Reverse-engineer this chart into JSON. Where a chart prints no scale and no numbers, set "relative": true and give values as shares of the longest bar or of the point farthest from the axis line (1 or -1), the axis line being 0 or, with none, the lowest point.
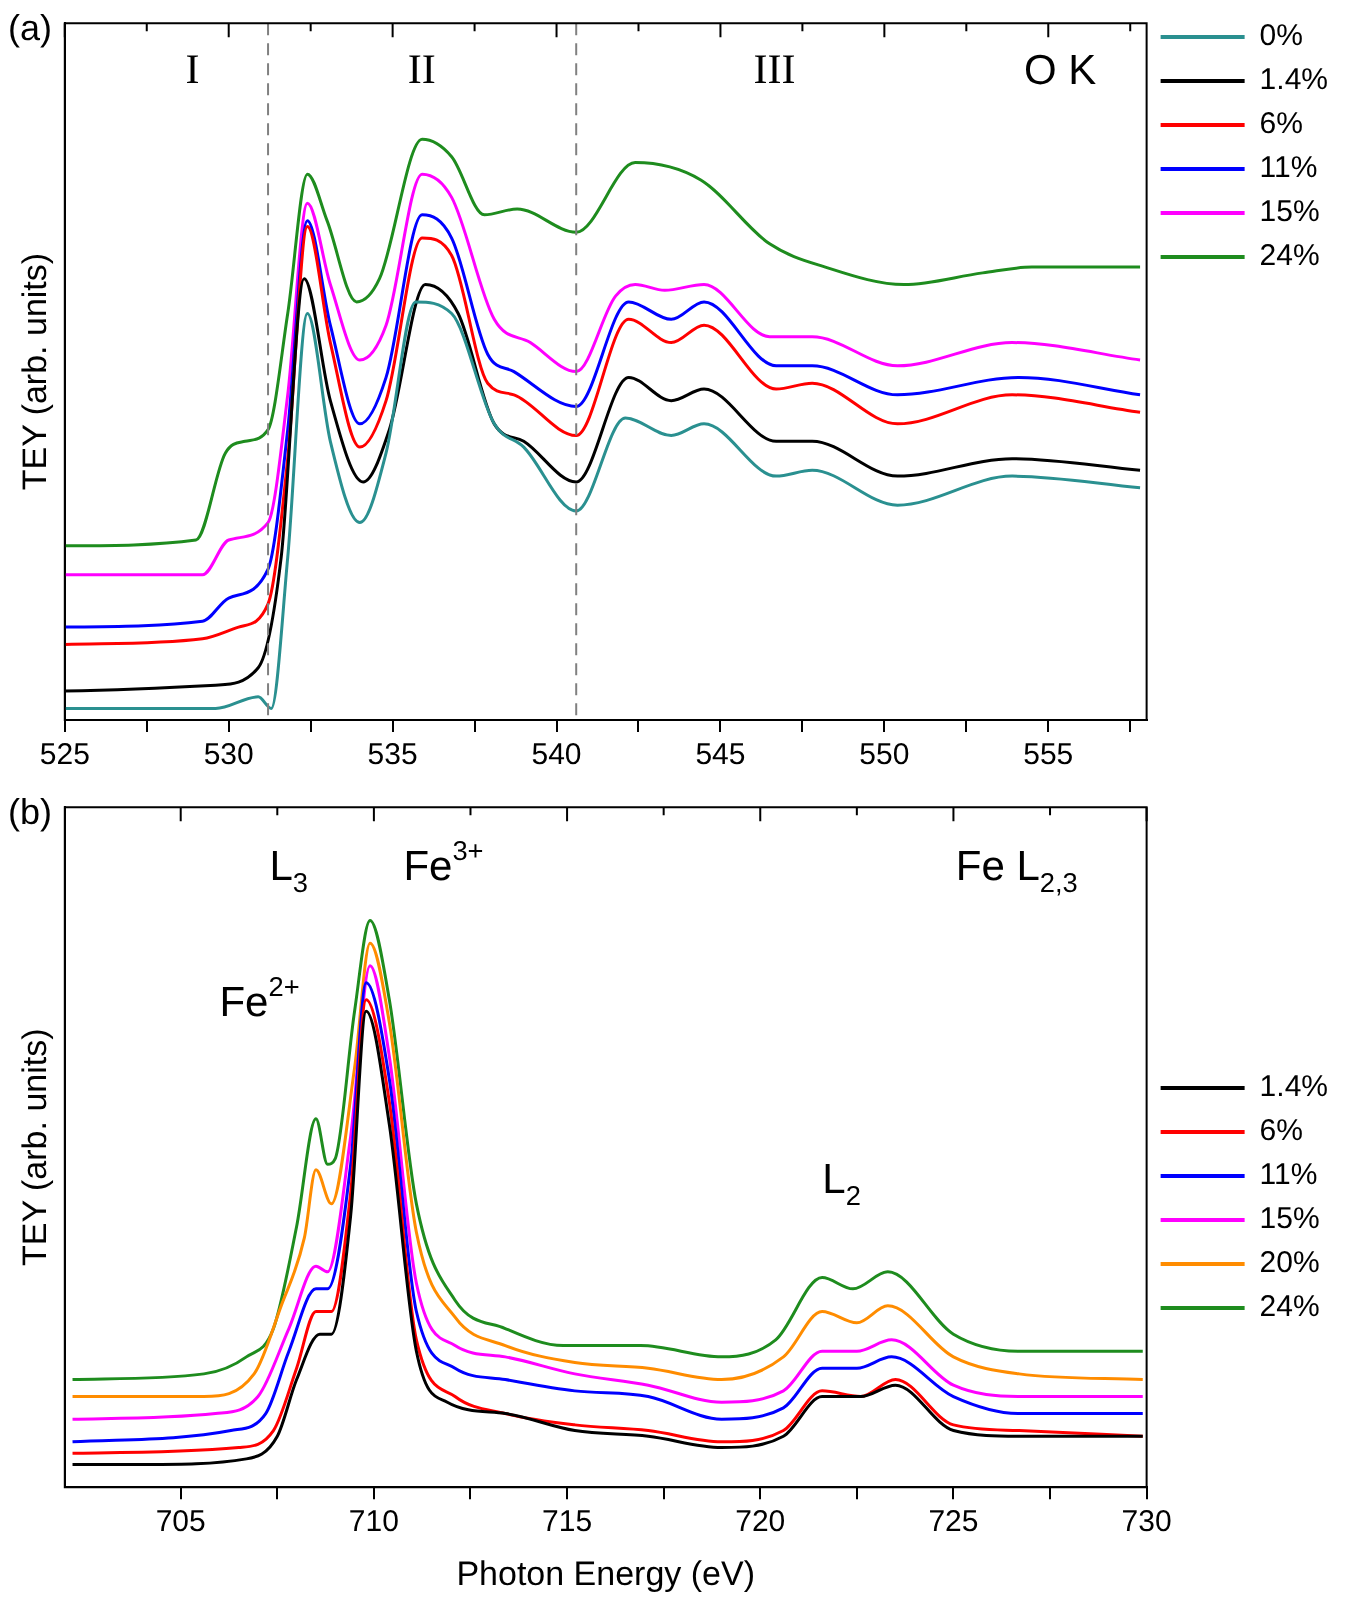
{
  "chart_data": [
    {
      "type": "line",
      "title": "(a)",
      "ylabel": "TEY (arb. units)",
      "relative": true,
      "legend": "top right",
      "tick_labels": "x",
      "grid": false,
      "marker": "none",
      "line_style": "solid",
      "xlim": [
        525,
        558
      ],
      "xticks": [
        525,
        {
          "value": 527.5,
          "label": null
        },
        530,
        {
          "value": 532.5,
          "label": null
        },
        535,
        {
          "value": 537.5,
          "label": null
        },
        540,
        {
          "value": 542.5,
          "label": null
        },
        545,
        {
          "value": 547.5,
          "label": null
        },
        550,
        {
          "value": 552.5,
          "label": null
        },
        555,
        {
          "value": 557.5,
          "label": null
        }
      ],
      "ref_lines": [
        {
          "axis": "x",
          "value": 531.2,
          "color": "#808080",
          "line_style": "dashed"
        },
        {
          "axis": "x",
          "value": 540.6,
          "color": "#808080",
          "line_style": "dashed"
        }
      ],
      "annotations": [
        "I",
        "II",
        "III",
        "O K"
      ],
      "series": [
        {
          "name": "0%",
          "color": "#2a9090",
          "x": [
            525,
            529.6,
            530.9,
            531.3,
            531.8,
            532.4,
            533.1,
            534.0,
            534.8,
            535.7,
            536.8,
            538.1,
            539.0,
            540.6,
            542.1,
            543.5,
            544.5,
            546.7,
            547.8,
            550.4,
            553.9,
            557.8
          ],
          "values": [
            0.02,
            0.02,
            0.04,
            0.02,
            0.28,
            0.7,
            0.48,
            0.34,
            0.46,
            0.72,
            0.7,
            0.51,
            0.47,
            0.36,
            0.52,
            0.49,
            0.51,
            0.42,
            0.43,
            0.37,
            0.42,
            0.4
          ]
        },
        {
          "name": "1.4%",
          "color": "#000000",
          "x": [
            525,
            529.6,
            530.9,
            531.6,
            532.3,
            533.1,
            534.1,
            534.9,
            536.0,
            537.0,
            538.1,
            539.0,
            540.6,
            542.2,
            543.5,
            544.5,
            546.7,
            547.8,
            550.4,
            553.9,
            557.8
          ],
          "values": [
            0.05,
            0.06,
            0.09,
            0.28,
            0.76,
            0.55,
            0.41,
            0.5,
            0.75,
            0.7,
            0.51,
            0.48,
            0.41,
            0.59,
            0.55,
            0.57,
            0.48,
            0.48,
            0.42,
            0.45,
            0.43
          ]
        },
        {
          "name": "6%",
          "color": "#ff0000",
          "x": [
            525,
            529.2,
            530.3,
            531.2,
            531.8,
            532.4,
            533.1,
            534.0,
            534.8,
            535.9,
            536.8,
            537.9,
            538.7,
            540.6,
            542.2,
            543.5,
            544.5,
            546.7,
            547.8,
            550.4,
            553.9,
            557.8
          ],
          "values": [
            0.13,
            0.14,
            0.16,
            0.2,
            0.45,
            0.85,
            0.65,
            0.47,
            0.55,
            0.83,
            0.8,
            0.58,
            0.56,
            0.49,
            0.69,
            0.65,
            0.68,
            0.57,
            0.58,
            0.51,
            0.56,
            0.53
          ]
        },
        {
          "name": "11%",
          "color": "#0000ff",
          "x": [
            525,
            529.2,
            530.0,
            531.2,
            531.8,
            532.4,
            533.1,
            534.0,
            534.8,
            535.9,
            536.8,
            537.9,
            538.7,
            540.6,
            542.2,
            543.5,
            544.5,
            546.7,
            547.8,
            550.4,
            554.1,
            557.8
          ],
          "values": [
            0.16,
            0.17,
            0.21,
            0.26,
            0.5,
            0.86,
            0.68,
            0.51,
            0.59,
            0.87,
            0.83,
            0.63,
            0.6,
            0.54,
            0.72,
            0.69,
            0.72,
            0.61,
            0.61,
            0.56,
            0.59,
            0.56
          ]
        },
        {
          "name": "15%",
          "color": "#ff00ff",
          "x": [
            525,
            529.2,
            530.0,
            531.2,
            531.8,
            532.4,
            533.1,
            534.0,
            534.8,
            535.9,
            536.8,
            538.1,
            539.2,
            540.6,
            541.8,
            542.4,
            543.3,
            544.5,
            546.5,
            547.8,
            550.4,
            553.9,
            557.8
          ],
          "values": [
            0.25,
            0.25,
            0.31,
            0.34,
            0.56,
            0.89,
            0.75,
            0.62,
            0.68,
            0.94,
            0.9,
            0.69,
            0.65,
            0.6,
            0.73,
            0.75,
            0.74,
            0.75,
            0.66,
            0.66,
            0.61,
            0.65,
            0.62
          ]
        },
        {
          "name": "24%",
          "color": "#1e8c1e",
          "x": [
            525,
            529.0,
            529.9,
            530.5,
            531.2,
            531.8,
            532.4,
            533.0,
            533.9,
            534.6,
            535.9,
            536.8,
            537.8,
            538.8,
            540.6,
            542.4,
            544.4,
            546.5,
            548.2,
            550.6,
            553.0,
            554.5,
            557.8
          ],
          "values": [
            0.3,
            0.31,
            0.46,
            0.48,
            0.5,
            0.7,
            0.94,
            0.86,
            0.72,
            0.76,
            1.0,
            0.97,
            0.87,
            0.88,
            0.84,
            0.96,
            0.93,
            0.82,
            0.78,
            0.75,
            0.77,
            0.78,
            0.78
          ]
        }
      ]
    },
    {
      "type": "line",
      "title": "(b)",
      "xlabel": "Photon Energy (eV)",
      "ylabel": "TEY (arb. units)",
      "relative": true,
      "legend": "right",
      "tick_labels": "x",
      "grid": false,
      "marker": "none",
      "line_style": "solid",
      "xlim": [
        702,
        730
      ],
      "xticks": [
        705,
        {
          "value": 707.5,
          "label": null
        },
        710,
        {
          "value": 712.5,
          "label": null
        },
        715,
        {
          "value": 717.5,
          "label": null
        },
        720,
        {
          "value": 722.5,
          "label": null
        },
        725,
        {
          "value": 727.5,
          "label": null
        },
        730
      ],
      "annotations": [
        "L$_{3}$",
        "Fe$^{3+}$",
        "Fe$^{2+}$",
        "L$_{2}$",
        "Fe L$_{2,3}$"
      ],
      "series": [
        {
          "name": "1.4%",
          "color": "#000000",
          "x": [
            702.2,
            704.1,
            706.7,
            707.5,
            708.0,
            708.6,
            708.9,
            709.4,
            709.8,
            710.4,
            711.1,
            711.9,
            713.4,
            715.2,
            717.1,
            719.0,
            720.6,
            721.6,
            722.6,
            723.5,
            725.0,
            726.7,
            729.9
          ],
          "values": [
            0.04,
            0.04,
            0.05,
            0.09,
            0.19,
            0.27,
            0.27,
            0.48,
            0.84,
            0.64,
            0.24,
            0.15,
            0.13,
            0.1,
            0.09,
            0.07,
            0.09,
            0.16,
            0.16,
            0.18,
            0.1,
            0.09,
            0.09
          ]
        },
        {
          "name": "6%",
          "color": "#ff0000",
          "x": [
            702.2,
            706.5,
            707.4,
            708.0,
            708.5,
            708.9,
            709.4,
            709.8,
            710.4,
            711.1,
            712.1,
            713.4,
            715.2,
            717.1,
            719.0,
            720.6,
            721.6,
            722.6,
            723.5,
            725.0,
            726.7,
            729.9
          ],
          "values": [
            0.06,
            0.07,
            0.1,
            0.21,
            0.31,
            0.31,
            0.52,
            0.86,
            0.68,
            0.26,
            0.16,
            0.13,
            0.11,
            0.1,
            0.08,
            0.1,
            0.17,
            0.16,
            0.19,
            0.11,
            0.1,
            0.09
          ]
        },
        {
          "name": "11%",
          "color": "#0000ff",
          "x": [
            702.2,
            706.3,
            707.2,
            707.8,
            708.5,
            708.8,
            709.4,
            709.8,
            710.4,
            711.1,
            712.1,
            713.4,
            715.2,
            717.1,
            719.0,
            720.6,
            721.6,
            722.5,
            723.4,
            725.0,
            726.7,
            729.9
          ],
          "values": [
            0.08,
            0.1,
            0.13,
            0.24,
            0.35,
            0.35,
            0.57,
            0.89,
            0.72,
            0.31,
            0.21,
            0.19,
            0.17,
            0.16,
            0.12,
            0.14,
            0.21,
            0.21,
            0.23,
            0.16,
            0.13,
            0.13
          ]
        },
        {
          "name": "15%",
          "color": "#ff00ff",
          "x": [
            702.2,
            705.9,
            707.0,
            707.8,
            708.5,
            708.8,
            709.4,
            709.9,
            710.4,
            711.1,
            712.1,
            713.4,
            715.2,
            717.1,
            719.0,
            720.6,
            721.6,
            722.5,
            723.4,
            725.0,
            726.7,
            729.9
          ],
          "values": [
            0.12,
            0.13,
            0.16,
            0.28,
            0.39,
            0.38,
            0.62,
            0.92,
            0.76,
            0.36,
            0.25,
            0.23,
            0.2,
            0.18,
            0.15,
            0.17,
            0.24,
            0.24,
            0.26,
            0.18,
            0.16,
            0.16
          ]
        },
        {
          "name": "20%",
          "color": "#ff8c00",
          "x": [
            702.2,
            705.6,
            706.9,
            707.6,
            708.2,
            708.5,
            708.9,
            709.5,
            709.9,
            710.4,
            711.1,
            712.1,
            713.4,
            715.2,
            717.1,
            719.0,
            720.6,
            721.6,
            722.5,
            723.3,
            725.0,
            726.7,
            729.9
          ],
          "values": [
            0.16,
            0.16,
            0.2,
            0.32,
            0.44,
            0.56,
            0.5,
            0.74,
            0.96,
            0.82,
            0.45,
            0.3,
            0.25,
            0.22,
            0.21,
            0.19,
            0.23,
            0.31,
            0.29,
            0.32,
            0.23,
            0.2,
            0.19
          ]
        },
        {
          "name": "24%",
          "color": "#1e8c1e",
          "x": [
            702.2,
            705.6,
            706.7,
            707.4,
            708.0,
            708.5,
            708.8,
            709.0,
            709.5,
            709.9,
            710.4,
            711.1,
            712.1,
            713.4,
            714.9,
            716.9,
            719.0,
            720.4,
            721.6,
            722.4,
            723.3,
            725.0,
            726.7,
            729.9
          ],
          "values": [
            0.19,
            0.2,
            0.23,
            0.28,
            0.46,
            0.65,
            0.57,
            0.58,
            0.84,
            1.0,
            0.86,
            0.5,
            0.33,
            0.28,
            0.25,
            0.25,
            0.23,
            0.26,
            0.37,
            0.35,
            0.38,
            0.27,
            0.24,
            0.24
          ]
        }
      ]
    }
  ]
}
